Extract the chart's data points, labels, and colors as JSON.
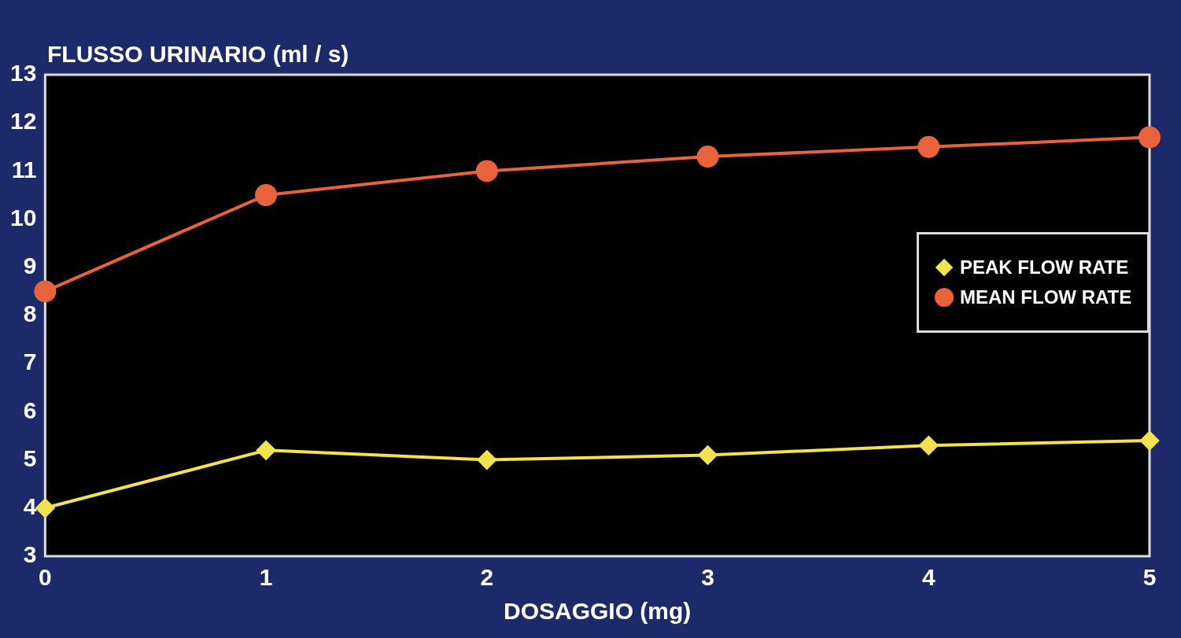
{
  "chart_data": {
    "type": "line",
    "ylabel": "FLUSSO URINARIO (ml / s)",
    "xlabel": "DOSAGGIO (mg)",
    "x": [
      0,
      1,
      2,
      3,
      4,
      5
    ],
    "series": [
      {
        "name": "PEAK FLOW RATE",
        "color": "#f2e34c",
        "marker": "diamond",
        "values": [
          4.0,
          5.2,
          5.0,
          5.1,
          5.3,
          5.4
        ]
      },
      {
        "name": "MEAN FLOW RATE",
        "color": "#e8633c",
        "marker": "circle",
        "values": [
          8.5,
          10.5,
          11.0,
          11.3,
          11.5,
          11.7
        ]
      }
    ],
    "xlim": [
      0,
      5
    ],
    "xticks": [
      0,
      1,
      2,
      3,
      4,
      5
    ],
    "ylim": [
      3,
      13
    ],
    "yticks": [
      3,
      4,
      5,
      6,
      7,
      8,
      9,
      10,
      11,
      12,
      13
    ],
    "grid": false,
    "legend": "right",
    "line_style": "solid"
  }
}
